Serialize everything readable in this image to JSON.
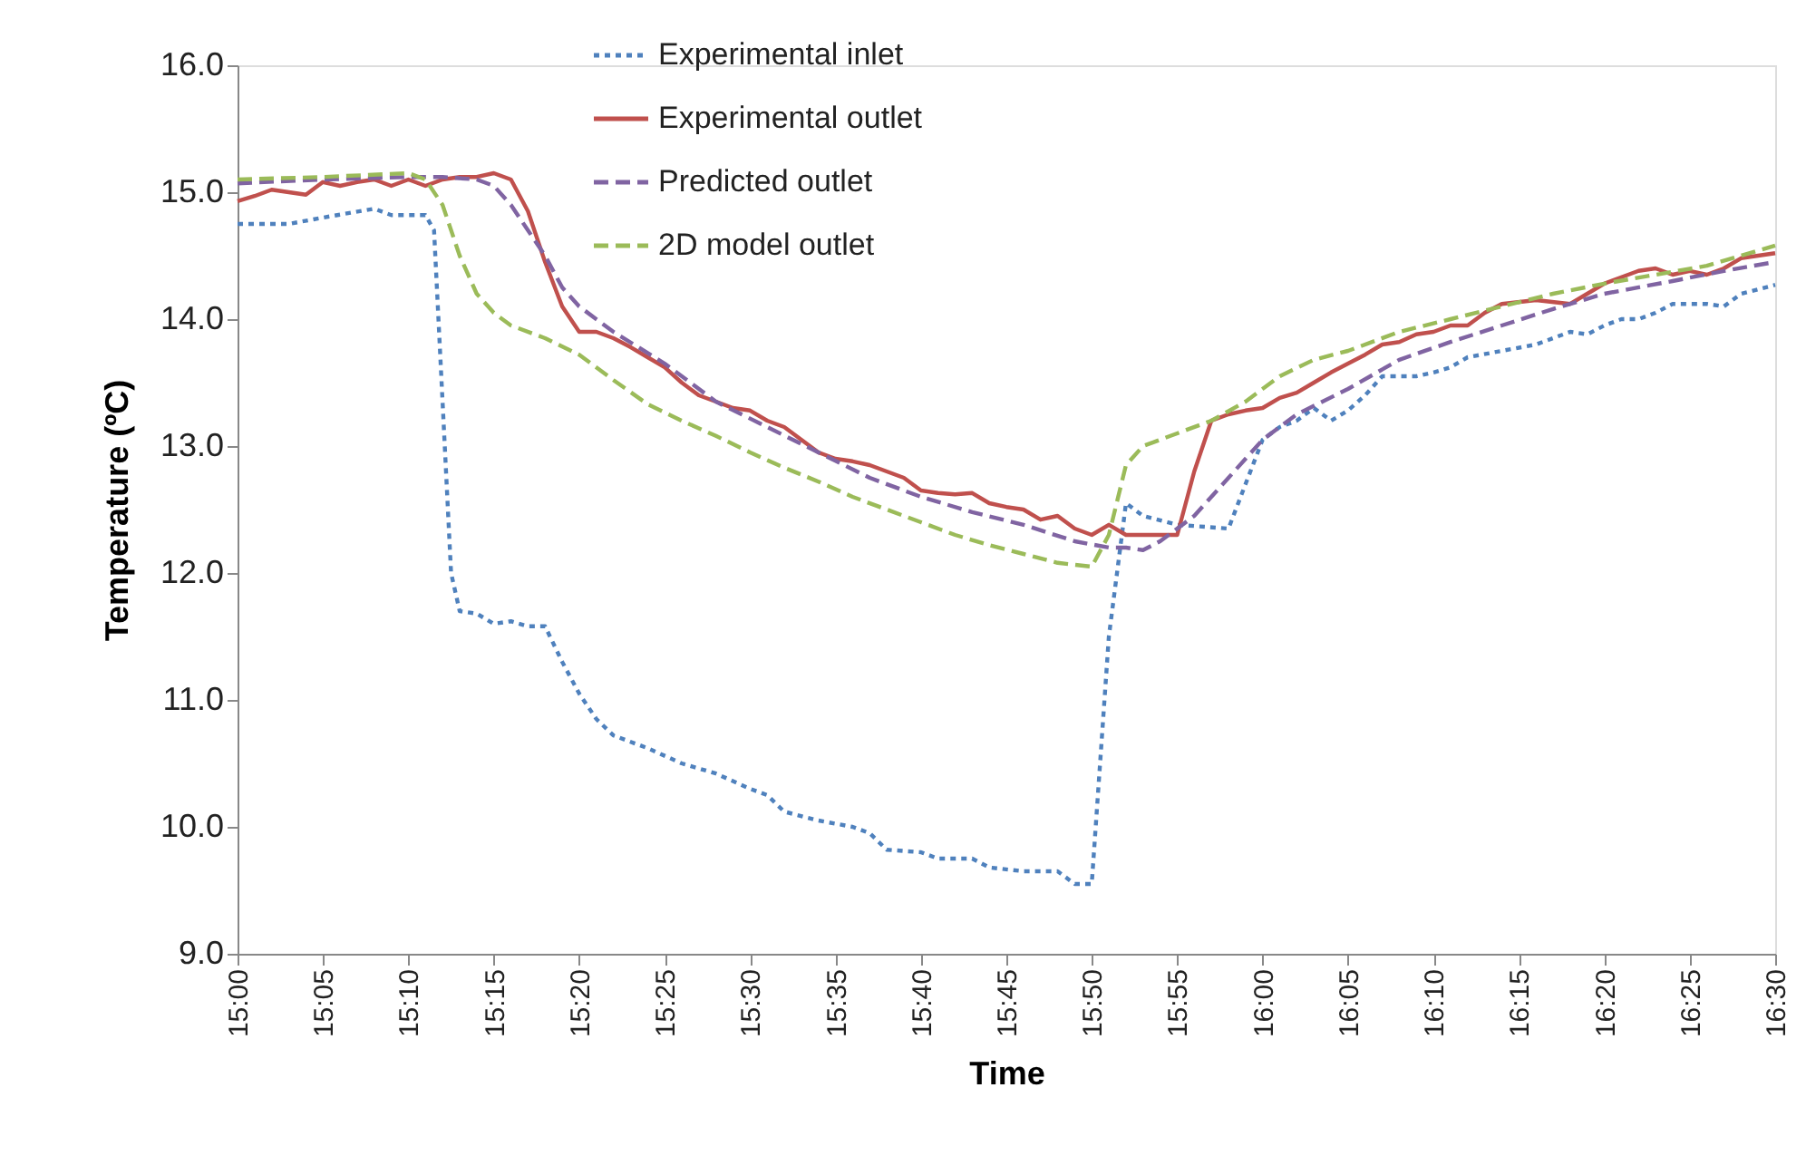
{
  "chart_data": {
    "type": "line",
    "xlabel": "Time",
    "ylabel": "Temperature (ºC)",
    "xlim": [
      15,
      16.5
    ],
    "ylim": [
      9,
      16
    ],
    "xticks": [
      {
        "value": 15,
        "label": "15:00"
      },
      {
        "value": 15.0833,
        "label": "15:05"
      },
      {
        "value": 15.1667,
        "label": "15:10"
      },
      {
        "value": 15.25,
        "label": "15:15"
      },
      {
        "value": 15.3333,
        "label": "15:20"
      },
      {
        "value": 15.4167,
        "label": "15:25"
      },
      {
        "value": 15.5,
        "label": "15:30"
      },
      {
        "value": 15.5833,
        "label": "15:35"
      },
      {
        "value": 15.6667,
        "label": "15:40"
      },
      {
        "value": 15.75,
        "label": "15:45"
      },
      {
        "value": 15.8333,
        "label": "15:50"
      },
      {
        "value": 15.9167,
        "label": "15:55"
      },
      {
        "value": 16,
        "label": "16:00"
      },
      {
        "value": 16.0833,
        "label": "16:05"
      },
      {
        "value": 16.1667,
        "label": "16:10"
      },
      {
        "value": 16.25,
        "label": "16:15"
      },
      {
        "value": 16.3333,
        "label": "16:20"
      },
      {
        "value": 16.4167,
        "label": "16:25"
      },
      {
        "value": 16.5,
        "label": "16:30"
      }
    ],
    "yticks": [
      {
        "value": 9,
        "label": "9.0"
      },
      {
        "value": 10,
        "label": "10.0"
      },
      {
        "value": 11,
        "label": "11.0"
      },
      {
        "value": 12,
        "label": "12.0"
      },
      {
        "value": 13,
        "label": "13.0"
      },
      {
        "value": 14,
        "label": "14.0"
      },
      {
        "value": 15,
        "label": "15.0"
      },
      {
        "value": 16,
        "label": "16.0"
      }
    ],
    "grid": false,
    "legend": "top",
    "marker": "none",
    "series": [
      {
        "name": "Experimental inlet",
        "color": "#4f81bd",
        "line_style": "dotted",
        "x": [
          15,
          15.05,
          15.0833,
          15.1333,
          15.15,
          15.1833,
          15.1917,
          15.2083,
          15.2167,
          15.2333,
          15.25,
          15.2667,
          15.2833,
          15.3,
          15.3167,
          15.3333,
          15.35,
          15.3667,
          15.4,
          15.4333,
          15.4667,
          15.5,
          15.5167,
          15.5333,
          15.5667,
          15.6,
          15.6167,
          15.6333,
          15.6667,
          15.6833,
          15.7,
          15.7167,
          15.7333,
          15.7667,
          15.8,
          15.8167,
          15.8333,
          15.85,
          15.8667,
          15.8833,
          15.9167,
          15.9667,
          15.9833,
          16,
          16.0167,
          16.0333,
          16.05,
          16.0667,
          16.0833,
          16.1,
          16.1167,
          16.15,
          16.1667,
          16.1833,
          16.2,
          16.2333,
          16.2667,
          16.2833,
          16.3,
          16.3167,
          16.3333,
          16.35,
          16.3667,
          16.3833,
          16.4,
          16.4333,
          16.45,
          16.4667,
          16.5
        ],
        "values": [
          14.75,
          14.75,
          14.8,
          14.87,
          14.82,
          14.82,
          14.7,
          12.0,
          11.7,
          11.68,
          11.6,
          11.62,
          11.58,
          11.58,
          11.3,
          11.05,
          10.85,
          10.72,
          10.62,
          10.5,
          10.42,
          10.3,
          10.25,
          10.12,
          10.05,
          10.0,
          9.95,
          9.82,
          9.8,
          9.75,
          9.75,
          9.75,
          9.68,
          9.65,
          9.65,
          9.55,
          9.55,
          11.5,
          12.55,
          12.45,
          12.38,
          12.35,
          12.7,
          13.05,
          13.15,
          13.2,
          13.3,
          13.2,
          13.28,
          13.4,
          13.55,
          13.55,
          13.58,
          13.62,
          13.7,
          13.75,
          13.8,
          13.85,
          13.9,
          13.88,
          13.95,
          14.0,
          14.0,
          14.05,
          14.12,
          14.12,
          14.1,
          14.2,
          14.27
        ]
      },
      {
        "name": "Experimental outlet",
        "color": "#c0504d",
        "line_style": "solid",
        "x": [
          15,
          15.0167,
          15.0333,
          15.05,
          15.0667,
          15.0833,
          15.1,
          15.1167,
          15.1333,
          15.15,
          15.1667,
          15.1833,
          15.2,
          15.2167,
          15.2333,
          15.25,
          15.2667,
          15.2833,
          15.3,
          15.3167,
          15.3333,
          15.35,
          15.3667,
          15.3833,
          15.4,
          15.4167,
          15.4333,
          15.45,
          15.4667,
          15.4833,
          15.5,
          15.5167,
          15.5333,
          15.55,
          15.5667,
          15.5833,
          15.6,
          15.6167,
          15.6333,
          15.65,
          15.6667,
          15.6833,
          15.7,
          15.7167,
          15.7333,
          15.75,
          15.7667,
          15.7833,
          15.8,
          15.8167,
          15.8333,
          15.85,
          15.8667,
          15.8833,
          15.9,
          15.9167,
          15.9333,
          15.95,
          15.9667,
          15.9833,
          16,
          16.0167,
          16.0333,
          16.05,
          16.0667,
          16.0833,
          16.1,
          16.1167,
          16.1333,
          16.15,
          16.1667,
          16.1833,
          16.2,
          16.2167,
          16.2333,
          16.2667,
          16.3,
          16.3167,
          16.3333,
          16.35,
          16.3667,
          16.3833,
          16.4,
          16.4167,
          16.4333,
          16.45,
          16.4667,
          16.4833,
          16.5
        ],
        "values": [
          14.93,
          14.97,
          15.02,
          15.0,
          14.98,
          15.08,
          15.05,
          15.08,
          15.1,
          15.05,
          15.1,
          15.05,
          15.1,
          15.12,
          15.12,
          15.15,
          15.1,
          14.85,
          14.45,
          14.1,
          13.9,
          13.9,
          13.85,
          13.78,
          13.7,
          13.62,
          13.5,
          13.4,
          13.35,
          13.3,
          13.28,
          13.2,
          13.15,
          13.05,
          12.95,
          12.9,
          12.88,
          12.85,
          12.8,
          12.75,
          12.65,
          12.63,
          12.62,
          12.63,
          12.55,
          12.52,
          12.5,
          12.42,
          12.45,
          12.35,
          12.3,
          12.38,
          12.3,
          12.3,
          12.3,
          12.3,
          12.8,
          13.2,
          13.25,
          13.28,
          13.3,
          13.38,
          13.42,
          13.5,
          13.58,
          13.65,
          13.72,
          13.8,
          13.82,
          13.88,
          13.9,
          13.95,
          13.95,
          14.05,
          14.12,
          14.15,
          14.12,
          14.2,
          14.28,
          14.33,
          14.38,
          14.4,
          14.35,
          14.38,
          14.35,
          14.4,
          14.48,
          14.5,
          14.52
        ]
      },
      {
        "name": "Predicted outlet",
        "color": "#8064a2",
        "line_style": "dashed",
        "x": [
          15,
          15.0833,
          15.1667,
          15.2,
          15.2333,
          15.25,
          15.2667,
          15.2833,
          15.3,
          15.3167,
          15.3333,
          15.3667,
          15.4167,
          15.4667,
          15.5167,
          15.5667,
          15.6167,
          15.6667,
          15.7167,
          15.7667,
          15.8167,
          15.85,
          15.8667,
          15.8833,
          15.9,
          15.9333,
          15.9667,
          16,
          16.0333,
          16.0833,
          16.1333,
          16.1833,
          16.2333,
          16.2833,
          16.3333,
          16.4,
          16.45,
          16.5
        ],
        "values": [
          15.07,
          15.1,
          15.12,
          15.12,
          15.1,
          15.05,
          14.9,
          14.7,
          14.5,
          14.25,
          14.1,
          13.9,
          13.65,
          13.35,
          13.15,
          12.95,
          12.75,
          12.6,
          12.48,
          12.38,
          12.25,
          12.2,
          12.2,
          12.18,
          12.25,
          12.45,
          12.75,
          13.05,
          13.25,
          13.45,
          13.68,
          13.82,
          13.95,
          14.08,
          14.2,
          14.3,
          14.38,
          14.45
        ]
      },
      {
        "name": "2D model outlet",
        "color": "#9bbb59",
        "line_style": "dashed",
        "x": [
          15,
          15.0833,
          15.1667,
          15.1833,
          15.2,
          15.2167,
          15.2333,
          15.25,
          15.2667,
          15.3,
          15.3333,
          15.3667,
          15.4,
          15.4333,
          15.4667,
          15.5,
          15.5333,
          15.5667,
          15.6,
          15.6333,
          15.6667,
          15.7,
          15.7333,
          15.7667,
          15.8,
          15.8333,
          15.85,
          15.8667,
          15.8833,
          15.9167,
          15.95,
          15.9833,
          16.0167,
          16.05,
          16.0833,
          16.1333,
          16.1833,
          16.2333,
          16.2833,
          16.3333,
          16.3833,
          16.4333,
          16.5
        ],
        "values": [
          15.1,
          15.12,
          15.15,
          15.1,
          14.9,
          14.5,
          14.2,
          14.05,
          13.95,
          13.85,
          13.72,
          13.52,
          13.33,
          13.2,
          13.08,
          12.95,
          12.83,
          12.72,
          12.6,
          12.5,
          12.4,
          12.3,
          12.22,
          12.15,
          12.08,
          12.05,
          12.3,
          12.85,
          13.0,
          13.1,
          13.2,
          13.35,
          13.55,
          13.68,
          13.75,
          13.9,
          14.0,
          14.1,
          14.2,
          14.28,
          14.35,
          14.42,
          14.58
        ]
      }
    ]
  }
}
